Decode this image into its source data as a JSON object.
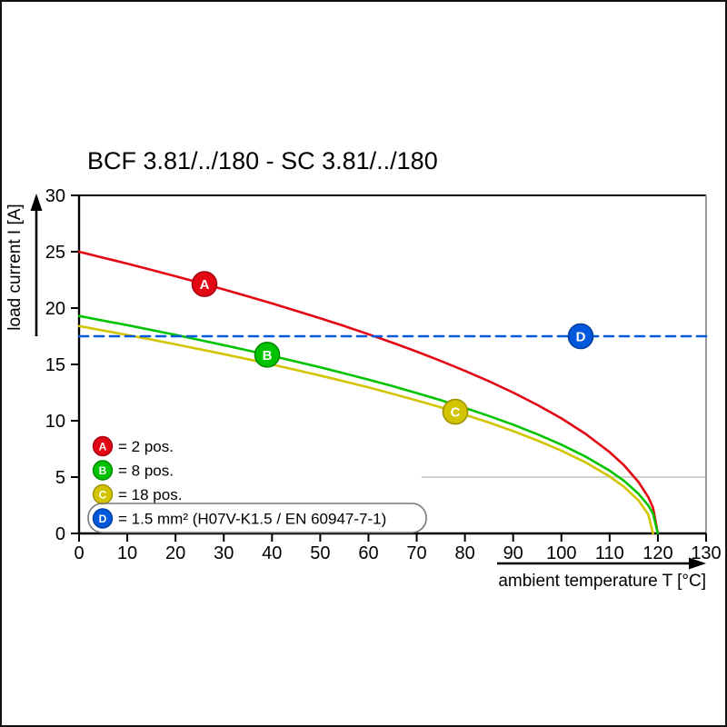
{
  "page": {
    "title": "BCF 3.81/../180 - SC 3.81/../180"
  },
  "chart_data": {
    "type": "line",
    "title": "BCF 3.81/../180 - SC 3.81/../180",
    "xlabel": "ambient temperature T [°C]",
    "ylabel": "load current I [A]",
    "xlim": [
      0,
      130
    ],
    "ylim": [
      0,
      30
    ],
    "x_ticks": [
      0,
      10,
      20,
      30,
      40,
      50,
      60,
      70,
      80,
      90,
      100,
      110,
      120,
      130
    ],
    "y_ticks": [
      0,
      5,
      10,
      15,
      20,
      25,
      30
    ],
    "grid": false,
    "legend_position": "lower-left-inside",
    "reference_line": {
      "y": 5,
      "x_start": 71,
      "x_end": 130,
      "color": "#c2c2c2"
    },
    "series": [
      {
        "letter": "A",
        "legend_label": "= 2 pos.",
        "color": "#e30613",
        "color_dark": "#a50410",
        "dash": false,
        "boxed_legend": false,
        "marker": {
          "t": 26,
          "i": 22.13
        },
        "t": [
          0,
          5,
          10,
          15,
          20,
          25,
          30,
          35,
          40,
          45,
          50,
          55,
          60,
          65,
          70,
          75,
          80,
          85,
          90,
          95,
          100,
          105,
          110,
          113,
          116,
          118,
          119,
          120
        ],
        "i": [
          25,
          24.47,
          23.94,
          23.39,
          22.82,
          22.25,
          21.65,
          21.04,
          20.41,
          19.76,
          19.09,
          18.4,
          17.68,
          16.93,
          16.14,
          15.31,
          14.43,
          13.5,
          12.5,
          11.41,
          10.21,
          8.84,
          7.22,
          6.04,
          4.56,
          3.23,
          2.28,
          0
        ]
      },
      {
        "letter": "B",
        "legend_label": "= 8 pos.",
        "color": "#00c300",
        "color_dark": "#008a00",
        "dash": false,
        "boxed_legend": false,
        "marker": {
          "t": 39,
          "i": 15.86
        },
        "t": [
          0,
          5,
          10,
          15,
          20,
          25,
          30,
          35,
          40,
          45,
          50,
          55,
          60,
          65,
          70,
          75,
          80,
          85,
          90,
          95,
          100,
          105,
          110,
          113,
          116,
          118,
          119,
          120
        ],
        "i": [
          19.3,
          18.89,
          18.48,
          18.06,
          17.62,
          17.17,
          16.71,
          16.24,
          15.76,
          15.25,
          14.74,
          14.2,
          13.65,
          13.07,
          12.46,
          11.82,
          11.14,
          10.42,
          9.65,
          8.81,
          7.88,
          6.82,
          5.57,
          4.66,
          3.52,
          2.49,
          1.76,
          0
        ]
      },
      {
        "letter": "C",
        "legend_label": "= 18 pos.",
        "color": "#d2c400",
        "color_dark": "#9e9300",
        "dash": false,
        "boxed_legend": false,
        "marker": {
          "t": 78,
          "i": 10.8
        },
        "t": [
          0,
          5,
          10,
          15,
          20,
          25,
          30,
          35,
          40,
          45,
          50,
          55,
          60,
          65,
          70,
          75,
          80,
          85,
          90,
          95,
          100,
          105,
          110,
          113,
          116,
          118,
          119
        ],
        "i": [
          18.4,
          18.01,
          17.61,
          17.2,
          16.78,
          16.35,
          15.91,
          15.46,
          14.99,
          14.51,
          14.01,
          13.49,
          12.96,
          12.39,
          11.81,
          11.19,
          10.53,
          9.84,
          9.08,
          8.26,
          7.35,
          6.31,
          5.06,
          4.13,
          2.92,
          1.69,
          0
        ]
      },
      {
        "letter": "D",
        "legend_label": "= 1.5 mm² (H07V-K1.5 / EN 60947-7-1)",
        "color": "#0058dc",
        "color_dark": "#003e9e",
        "dash": true,
        "boxed_legend": true,
        "marker": {
          "t": 104,
          "i": 17.5
        },
        "t": [
          0,
          130
        ],
        "i": [
          17.5,
          17.5
        ]
      }
    ]
  }
}
